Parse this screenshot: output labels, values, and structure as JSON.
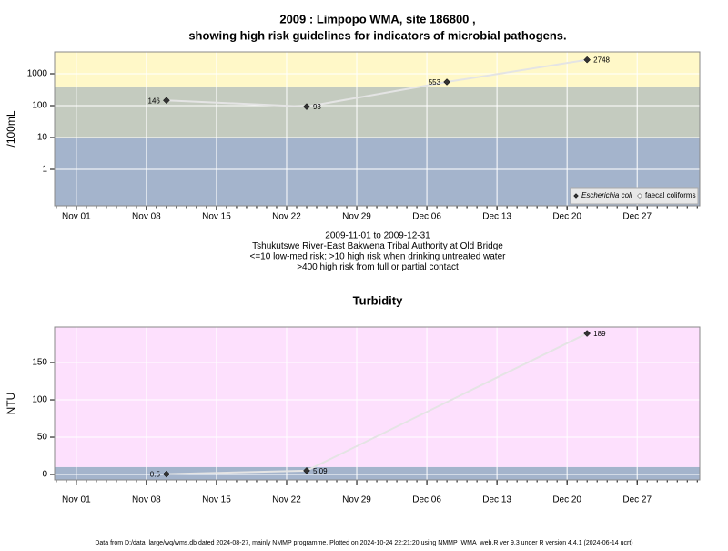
{
  "chart_data": [
    {
      "type": "line",
      "title": [
        "2009 : Limpopo WMA, site 186800 ,",
        "showing high risk guidelines for indicators of microbial pathogens."
      ],
      "ylabel": "/100mL",
      "log_y": true,
      "x": [
        "2009-11-10",
        "2009-11-24",
        "2009-12-08",
        "2009-12-22"
      ],
      "series": [
        {
          "name": "Escherichia coli",
          "color": "#333333",
          "values": [
            146,
            93,
            553,
            2748
          ]
        },
        {
          "name": "faecal coliforms",
          "color": "#ffffff",
          "values": [
            null,
            null,
            null,
            null
          ]
        }
      ],
      "line_color": "#e4e4e4",
      "xlim": [
        "2009-10-29T20:00",
        "2010-01-02T06:00"
      ],
      "xticks": [
        {
          "value": "2009-11-01",
          "label": "Nov 01"
        },
        {
          "value": "2009-11-08",
          "label": "Nov 08"
        },
        {
          "value": "2009-11-15",
          "label": "Nov 15"
        },
        {
          "value": "2009-11-22",
          "label": "Nov 22"
        },
        {
          "value": "2009-11-29",
          "label": "Nov 29"
        },
        {
          "value": "2009-12-06",
          "label": "Dec 06"
        },
        {
          "value": "2009-12-13",
          "label": "Dec 13"
        },
        {
          "value": "2009-12-20",
          "label": "Dec 20"
        },
        {
          "value": "2009-12-27",
          "label": "Dec 27"
        }
      ],
      "ylim": [
        0.072,
        4850
      ],
      "yticks": [
        1,
        10,
        100,
        1000
      ],
      "grid": true,
      "bands": [
        {
          "upto": 10,
          "color": "#a4b4cc"
        },
        {
          "upto": 400,
          "color": "#c4cbbf"
        },
        {
          "upto": null,
          "color": "#fff8c8"
        }
      ],
      "legend": "bottom-right",
      "notes": [
        "2009-11-01 to 2009-12-31",
        "Tshukutswe River-East Bakwena Tribal Authority at Old Bridge",
        "<=10 low-med risk; >10 high risk when drinking untreated water",
        ">400 high risk from full or partial contact"
      ]
    },
    {
      "type": "line",
      "title": [
        "Turbidity"
      ],
      "ylabel": "NTU",
      "log_y": false,
      "x": [
        "2009-11-10",
        "2009-11-24",
        "2009-12-22"
      ],
      "series": [
        {
          "color": "#333333",
          "values": [
            0.5,
            5.09,
            189
          ]
        }
      ],
      "line_color": "#e4e4e4",
      "xlim": [
        "2009-10-29T20:00",
        "2010-01-02T06:00"
      ],
      "xticks": [
        {
          "value": "2009-11-01",
          "label": "Nov 01"
        },
        {
          "value": "2009-11-08",
          "label": "Nov 08"
        },
        {
          "value": "2009-11-15",
          "label": "Nov 15"
        },
        {
          "value": "2009-11-22",
          "label": "Nov 22"
        },
        {
          "value": "2009-11-29",
          "label": "Nov 29"
        },
        {
          "value": "2009-12-06",
          "label": "Dec 06"
        },
        {
          "value": "2009-12-13",
          "label": "Dec 13"
        },
        {
          "value": "2009-12-20",
          "label": "Dec 20"
        },
        {
          "value": "2009-12-27",
          "label": "Dec 27"
        }
      ],
      "ylim": [
        -7.3,
        197.6
      ],
      "yticks": [
        0,
        50,
        100,
        150
      ],
      "grid": true,
      "bands": [
        {
          "upto": 10,
          "color": "#a4b4cc"
        },
        {
          "upto": null,
          "color": "#fde0fd"
        }
      ]
    }
  ],
  "footer": "Data from D:/data_large/wq/wms.db dated 2024-08-27, mainly NMMP programme. Plotted on 2024-10-24 22:21:20 using NMMP_WMA_web.R ver 9.3 under R version 4.4.1 (2024-06-14 ucrt)"
}
